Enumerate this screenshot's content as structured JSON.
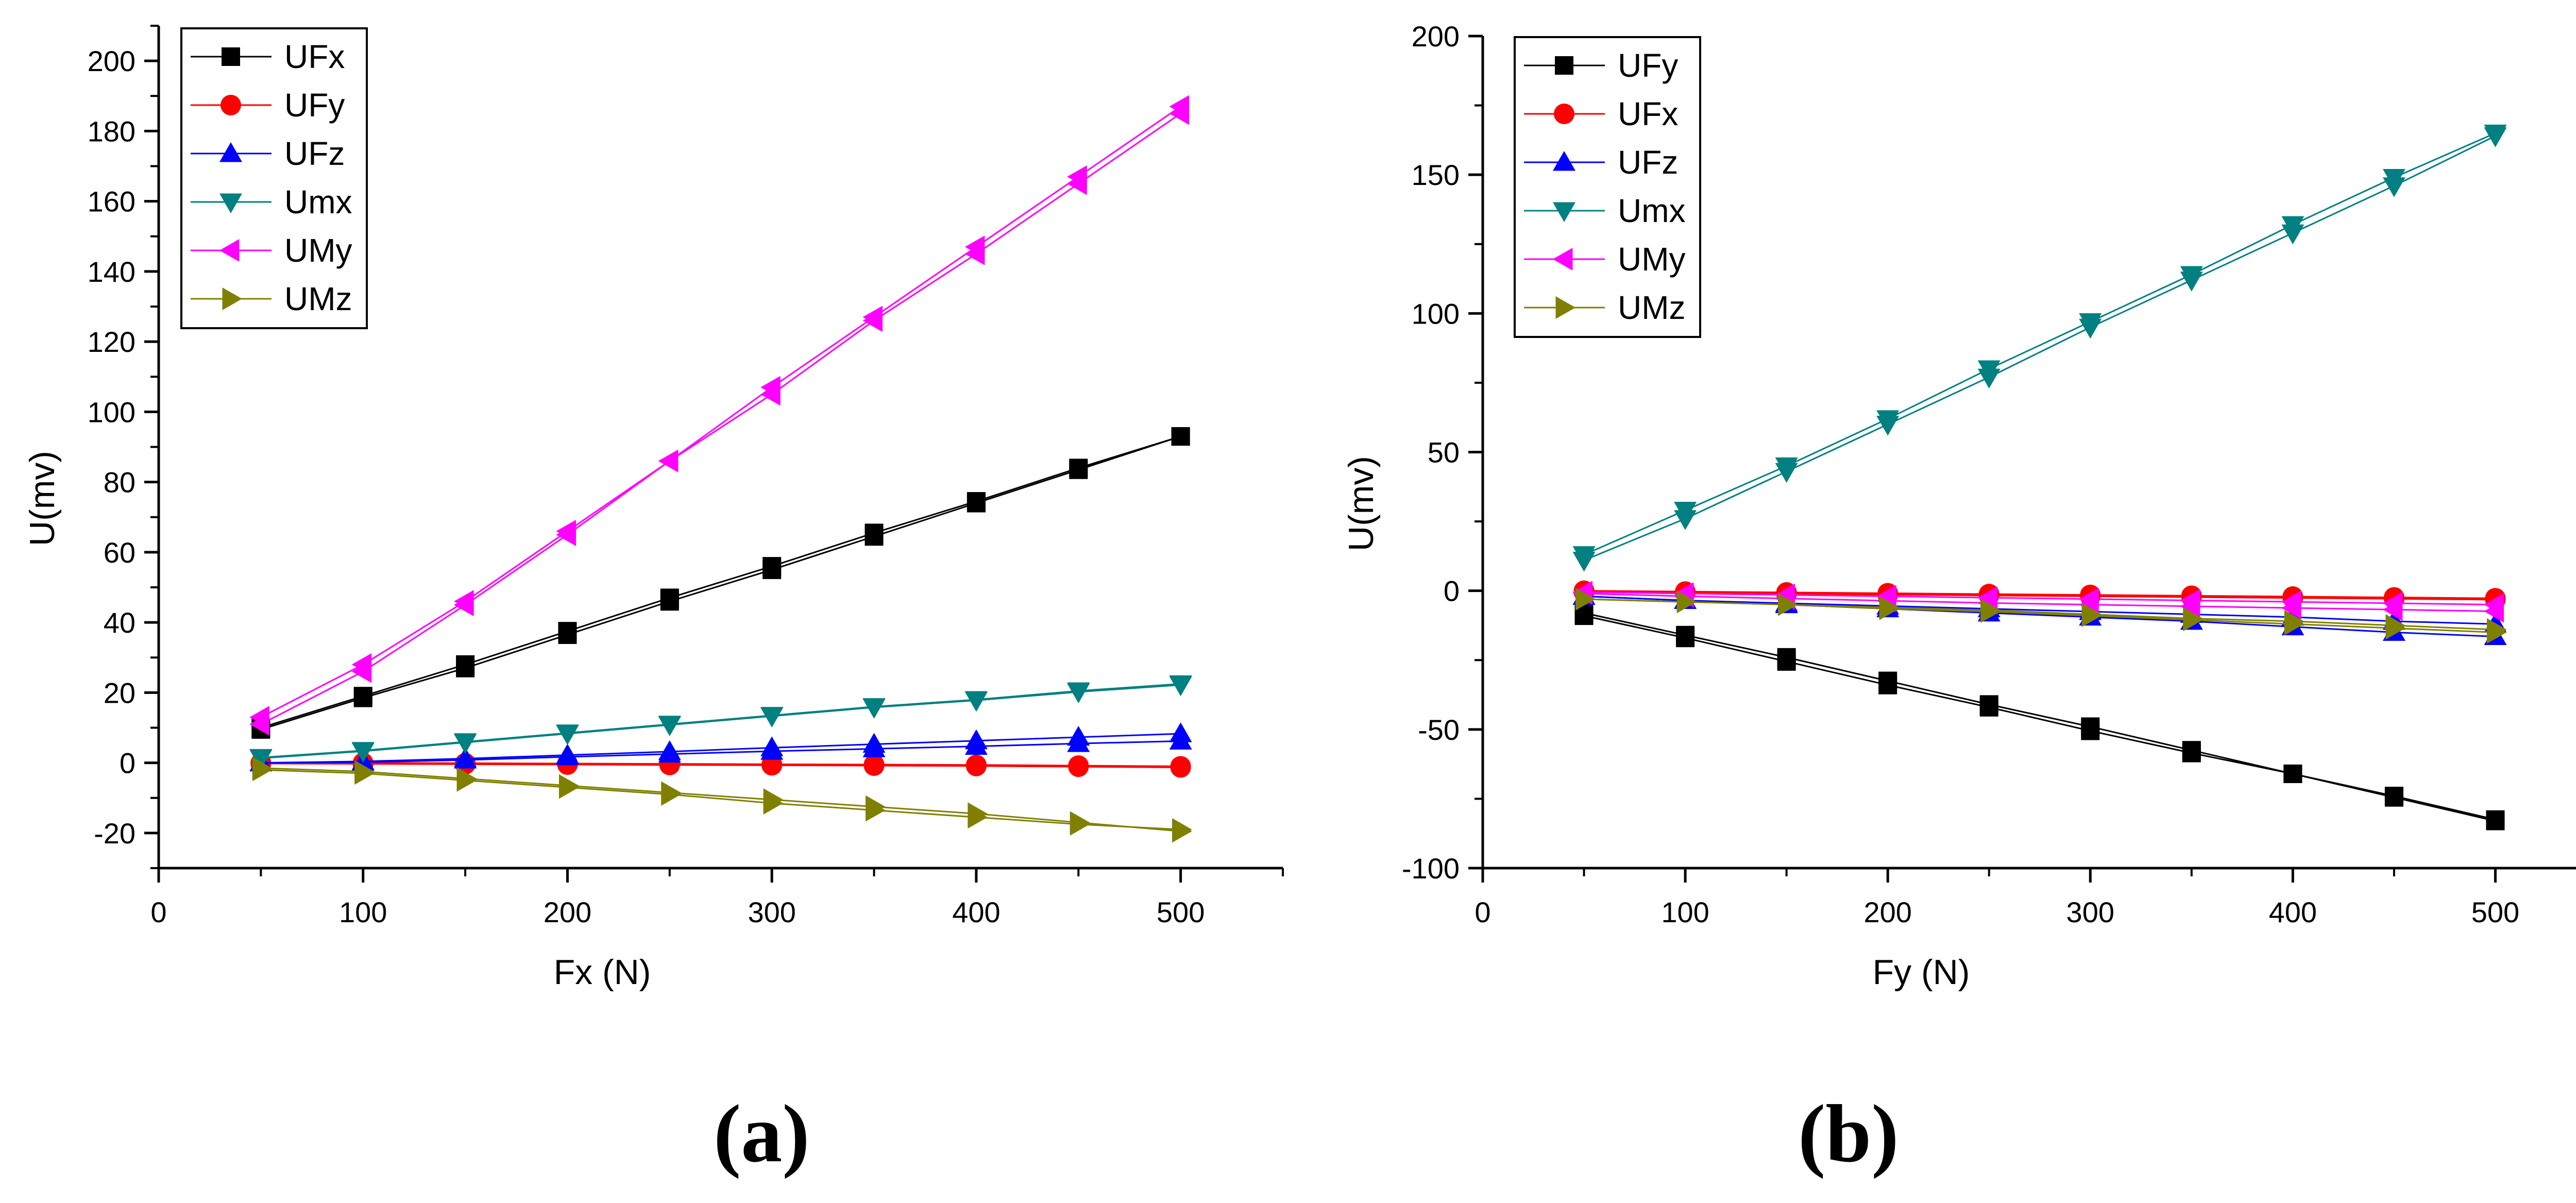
{
  "chart_data": [
    {
      "type": "line",
      "panel_label": "(a)",
      "title": "",
      "xlabel": "Fx (N)",
      "ylabel": "U(mv)",
      "xlim": [
        0,
        550
      ],
      "ylim": [
        -30,
        210
      ],
      "xticks": [
        0,
        100,
        200,
        300,
        400,
        500
      ],
      "yticks": [
        -20,
        0,
        20,
        40,
        60,
        80,
        100,
        120,
        140,
        160,
        180,
        200
      ],
      "grid": false,
      "legend": "top-left",
      "x": [
        50,
        100,
        150,
        200,
        250,
        300,
        350,
        400,
        450,
        500
      ],
      "series": [
        {
          "name": "UFx",
          "color": "#000000",
          "marker": "square",
          "values": [
            10,
            19,
            28,
            37.5,
            47,
            56,
            65.5,
            74.5,
            84,
            93
          ],
          "values_return": [
            9.5,
            18.5,
            27,
            36.5,
            46,
            55,
            64.5,
            74,
            83.5,
            93
          ]
        },
        {
          "name": "UFy",
          "color": "#ff0000",
          "marker": "circle",
          "values": [
            -0.2,
            -0.3,
            -0.4,
            -0.5,
            -0.6,
            -0.7,
            -0.8,
            -0.9,
            -1.1,
            -1.3
          ],
          "values_return": [
            0,
            0,
            -0.1,
            -0.2,
            -0.3,
            -0.4,
            -0.5,
            -0.6,
            -0.8,
            -1.0
          ]
        },
        {
          "name": "UFz",
          "color": "#0000ff",
          "marker": "triangle-up",
          "values": [
            0,
            0.4,
            1.2,
            2.2,
            3.2,
            4.3,
            5.3,
            6.3,
            7.3,
            8.3
          ],
          "values_return": [
            0,
            0.2,
            0.8,
            1.7,
            2.5,
            3.3,
            4.0,
            4.7,
            5.5,
            6.2
          ]
        },
        {
          "name": "Umx",
          "color": "#008080",
          "marker": "triangle-down",
          "values": [
            1.5,
            3.5,
            6,
            8.5,
            11,
            13.5,
            16,
            18,
            20.5,
            22.5
          ],
          "values_return": [
            1.3,
            3.3,
            5.8,
            8.3,
            10.8,
            13.3,
            15.8,
            17.8,
            20.2,
            22.2
          ]
        },
        {
          "name": "UMy",
          "color": "#ff00ff",
          "marker": "triangle-left",
          "values": [
            13,
            28,
            46,
            66,
            86,
            107,
            127,
            147,
            167,
            187
          ],
          "values_return": [
            11,
            26,
            45,
            65,
            86,
            105,
            126,
            145,
            165,
            185
          ]
        },
        {
          "name": "UMz",
          "color": "#808000",
          "marker": "triangle-right",
          "values": [
            -1.5,
            -2.5,
            -4.5,
            -6.5,
            -8.5,
            -10.5,
            -12.5,
            -14.5,
            -17,
            -19.5
          ],
          "values_return": [
            -2,
            -3,
            -5,
            -7,
            -9,
            -11.5,
            -13.5,
            -15.5,
            -17.5,
            -19
          ]
        }
      ]
    },
    {
      "type": "line",
      "panel_label": "(b)",
      "title": "",
      "xlabel": "Fy (N)",
      "ylabel": "U(mv)",
      "xlim": [
        0,
        550
      ],
      "ylim": [
        -100,
        200
      ],
      "xticks": [
        0,
        100,
        200,
        300,
        400,
        500
      ],
      "yticks": [
        -100,
        -50,
        0,
        50,
        100,
        150,
        200
      ],
      "grid": false,
      "legend": "top-left",
      "x": [
        50,
        100,
        150,
        200,
        250,
        300,
        350,
        400,
        450,
        500
      ],
      "series": [
        {
          "name": "UFy",
          "color": "#000000",
          "marker": "square",
          "values": [
            -8,
            -16,
            -24,
            -32.5,
            -41,
            -49,
            -57.5,
            -66,
            -74,
            -82.5
          ],
          "values_return": [
            -9,
            -17,
            -25.5,
            -34,
            -42,
            -50.5,
            -58.5,
            -66,
            -74.5,
            -83
          ]
        },
        {
          "name": "UFx",
          "color": "#ff0000",
          "marker": "circle",
          "values": [
            0,
            -0.3,
            -0.6,
            -0.9,
            -1.2,
            -1.5,
            -1.8,
            -2.1,
            -2.4,
            -2.7
          ],
          "values_return": [
            -0.5,
            -0.8,
            -1.1,
            -1.4,
            -1.7,
            -2.0,
            -2.3,
            -2.6,
            -2.9,
            -3.2
          ]
        },
        {
          "name": "UFz",
          "color": "#0000ff",
          "marker": "triangle-up",
          "values": [
            -2,
            -3.5,
            -5,
            -6.5,
            -8,
            -9.5,
            -11,
            -13,
            -15,
            -16.5
          ],
          "values_return": [
            -2,
            -3.5,
            -4.5,
            -5.5,
            -6.5,
            -7.5,
            -8.5,
            -9.5,
            -11,
            -12
          ]
        },
        {
          "name": "Umx",
          "color": "#008080",
          "marker": "triangle-down",
          "values": [
            13,
            29,
            45,
            62,
            80,
            97,
            114,
            132,
            149,
            165
          ],
          "values_return": [
            11,
            26,
            43,
            60,
            77,
            95,
            112,
            129,
            146,
            164
          ]
        },
        {
          "name": "UMy",
          "color": "#ff00ff",
          "marker": "triangle-left",
          "values": [
            -0.5,
            -1,
            -1.5,
            -2,
            -2.5,
            -3,
            -3.5,
            -4,
            -4.5,
            -5
          ],
          "values_return": [
            -1,
            -2,
            -2.8,
            -3.6,
            -4.4,
            -5,
            -5.6,
            -6.2,
            -6.8,
            -7.4
          ]
        },
        {
          "name": "UMz",
          "color": "#808000",
          "marker": "triangle-right",
          "values": [
            -3,
            -4,
            -5,
            -6,
            -7,
            -8.5,
            -10,
            -11,
            -12.5,
            -14
          ],
          "values_return": [
            -3,
            -4,
            -5,
            -6.5,
            -7.5,
            -9,
            -10.5,
            -12,
            -13.5,
            -15
          ]
        }
      ]
    }
  ]
}
